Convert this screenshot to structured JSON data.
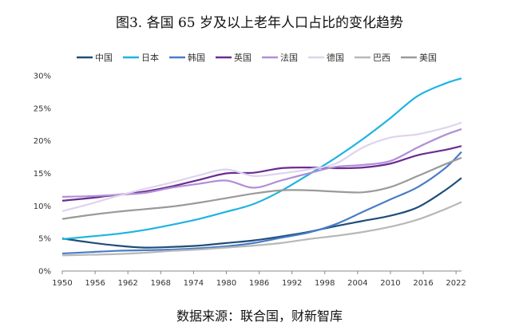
{
  "chart_data": {
    "type": "line",
    "title": "图3. 各国 65 岁及以上老年人口占比的变化趋势",
    "source": "数据来源：联合国，财新智库",
    "xlabel": "",
    "ylabel": "",
    "xlim": [
      1950,
      2023
    ],
    "ylim": [
      0,
      30
    ],
    "x_ticks": [
      1950,
      1956,
      1962,
      1968,
      1974,
      1980,
      1986,
      1992,
      1998,
      2004,
      2010,
      2016,
      2022
    ],
    "y_ticks": [
      0,
      5,
      10,
      15,
      20,
      25,
      30
    ],
    "y_tick_labels": [
      "0%",
      "5%",
      "10%",
      "15%",
      "20%",
      "25%",
      "30%"
    ],
    "legend_position": "top",
    "grid": false,
    "x": [
      1950,
      1955,
      1960,
      1965,
      1970,
      1975,
      1980,
      1985,
      1990,
      1995,
      2000,
      2005,
      2010,
      2015,
      2020,
      2023
    ],
    "series": [
      {
        "name": "中国",
        "color": "#1f4e79",
        "values": [
          5.0,
          4.4,
          3.9,
          3.6,
          3.7,
          3.9,
          4.3,
          4.7,
          5.3,
          6.0,
          6.9,
          7.7,
          8.5,
          9.8,
          12.4,
          14.3
        ]
      },
      {
        "name": "日本",
        "color": "#1fb4e0",
        "values": [
          4.9,
          5.3,
          5.7,
          6.3,
          7.1,
          8.0,
          9.1,
          10.3,
          12.3,
          14.8,
          17.4,
          20.3,
          23.5,
          26.9,
          28.8,
          29.6
        ]
      },
      {
        "name": "韩国",
        "color": "#4a7cc7",
        "values": [
          2.7,
          2.9,
          3.1,
          3.2,
          3.3,
          3.5,
          3.8,
          4.3,
          5.1,
          5.9,
          7.2,
          9.1,
          11.0,
          12.9,
          15.8,
          18.3
        ]
      },
      {
        "name": "英国",
        "color": "#6a2c91",
        "values": [
          10.8,
          11.2,
          11.7,
          12.2,
          13.0,
          14.0,
          15.0,
          15.1,
          15.8,
          15.9,
          15.8,
          15.9,
          16.5,
          17.8,
          18.6,
          19.2
        ]
      },
      {
        "name": "法国",
        "color": "#b08fd6",
        "values": [
          11.4,
          11.5,
          11.7,
          12.0,
          12.8,
          13.4,
          13.9,
          12.8,
          13.9,
          15.0,
          16.0,
          16.3,
          16.9,
          19.0,
          20.9,
          21.8
        ]
      },
      {
        "name": "德国",
        "color": "#dfd3ee",
        "values": [
          9.2,
          10.3,
          11.5,
          12.6,
          13.6,
          14.7,
          15.6,
          14.6,
          15.0,
          15.6,
          16.5,
          19.0,
          20.5,
          21.0,
          22.0,
          22.8
        ]
      },
      {
        "name": "巴西",
        "color": "#b8b8b8",
        "values": [
          2.4,
          2.5,
          2.6,
          2.8,
          3.1,
          3.3,
          3.6,
          3.9,
          4.3,
          4.9,
          5.4,
          6.0,
          6.8,
          7.9,
          9.5,
          10.6
        ]
      },
      {
        "name": "美国",
        "color": "#9a9a9a",
        "values": [
          8.0,
          8.6,
          9.1,
          9.5,
          9.9,
          10.5,
          11.2,
          11.9,
          12.4,
          12.4,
          12.2,
          12.1,
          12.9,
          14.6,
          16.4,
          17.4
        ]
      }
    ]
  }
}
